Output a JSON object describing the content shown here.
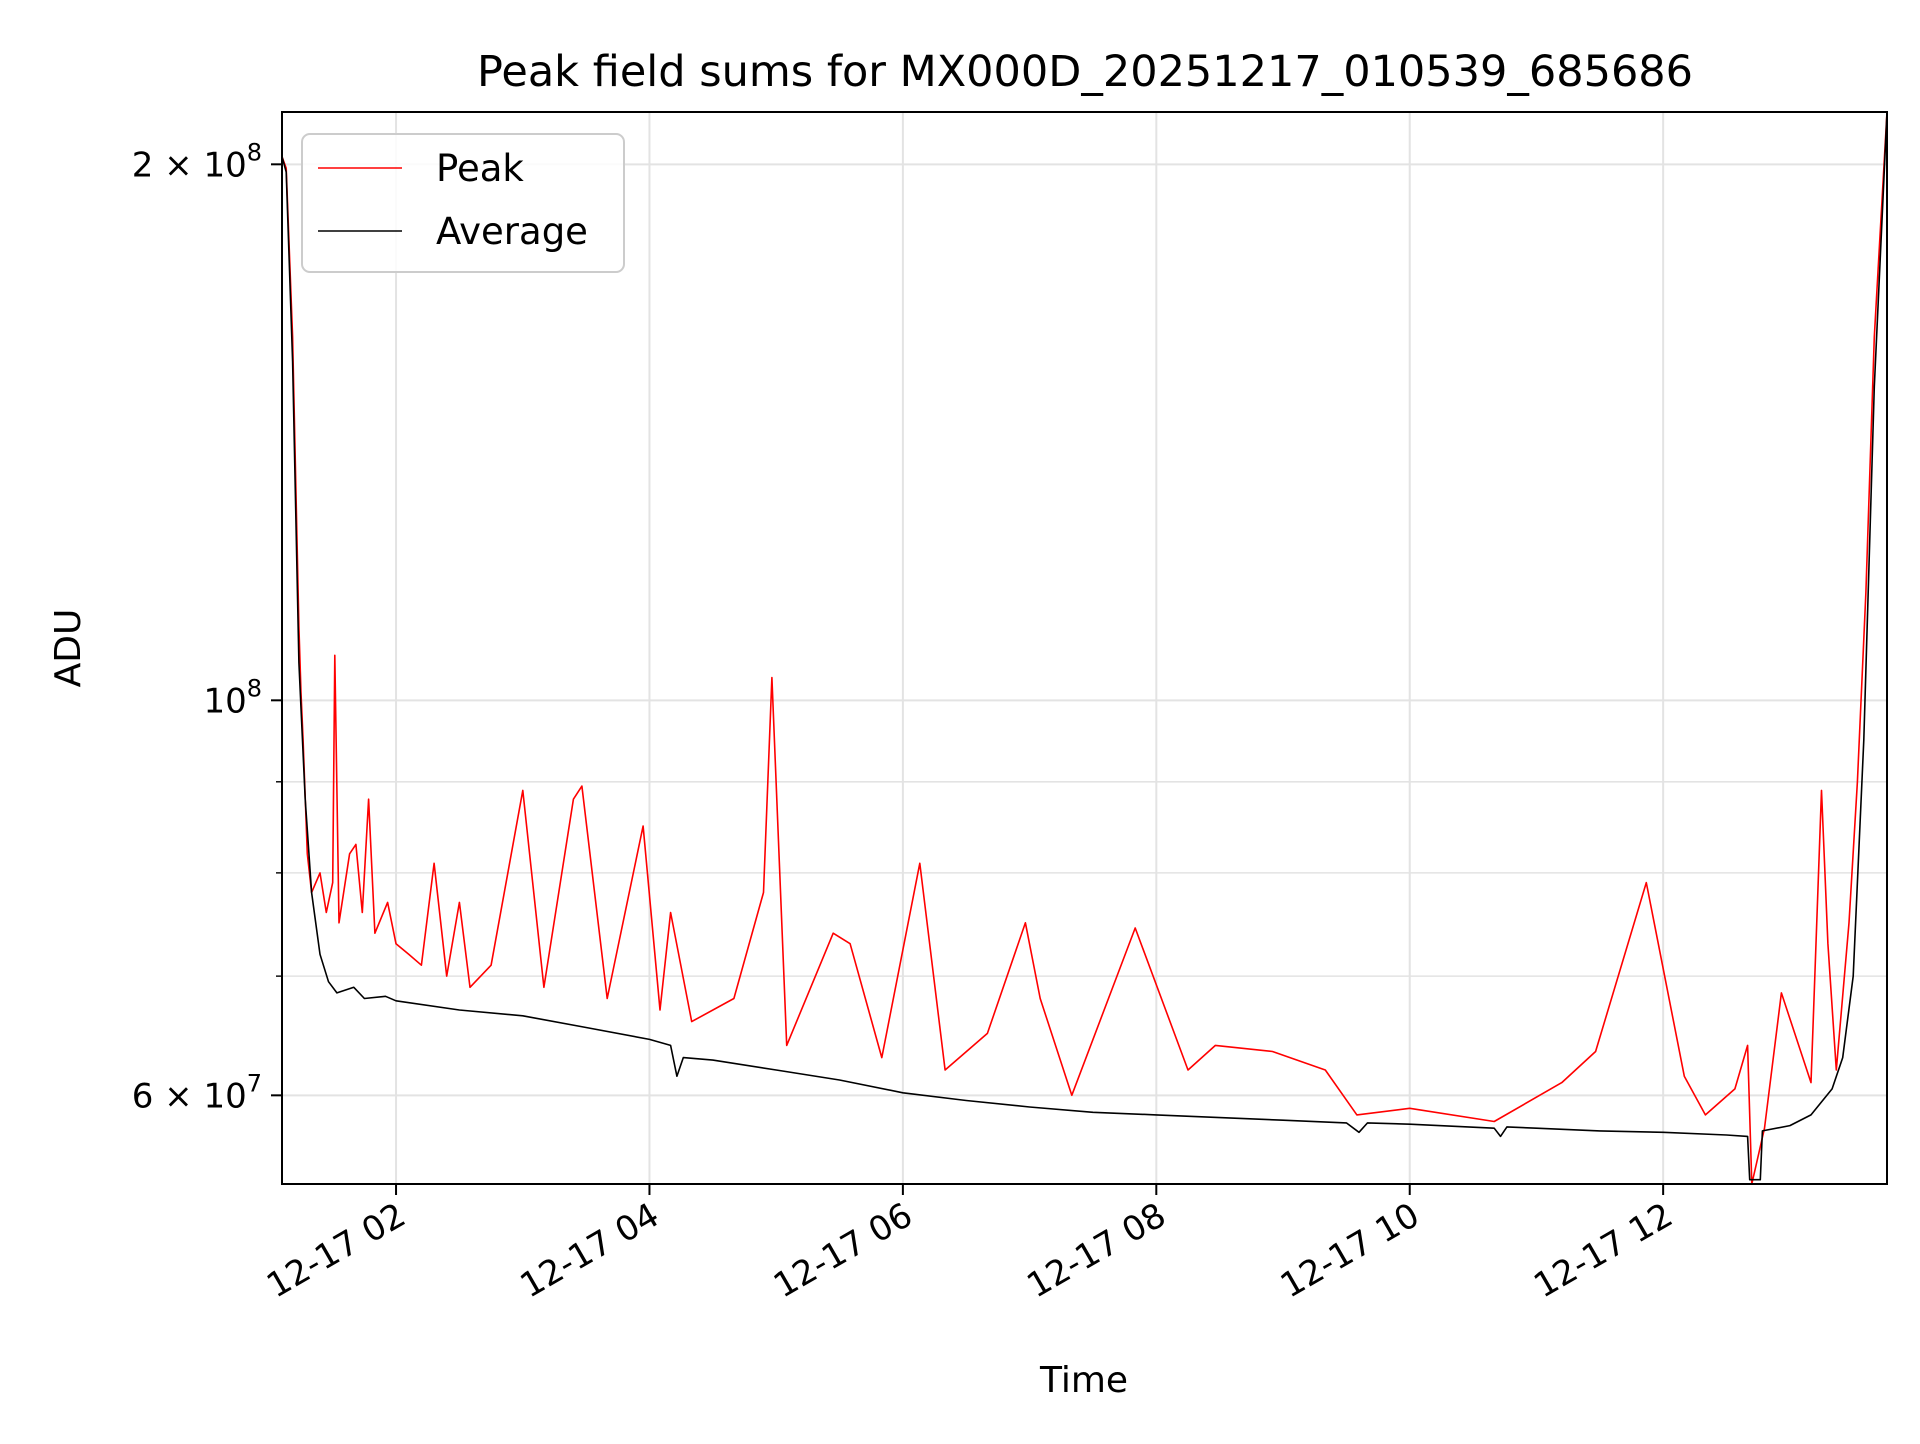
{
  "chart_data": {
    "type": "line",
    "title": "Peak field sums for MX000D_20251217_010539_685686",
    "xlabel": "Time",
    "ylabel": "ADU",
    "yscale": "log",
    "xlim": [
      "12-17 01:06",
      "12-17 13:46"
    ],
    "ylim": [
      53500000,
      214000000
    ],
    "grid": true,
    "legend_position": "top-left",
    "x_ticks": [
      "12-17 02",
      "12-17 04",
      "12-17 06",
      "12-17 08",
      "12-17 10",
      "12-17 12"
    ],
    "y_ticks": [
      {
        "value": 200000000,
        "mantissa": "2",
        "exponent": "8",
        "label": "2 × 10^8"
      },
      {
        "value": 100000000,
        "mantissa": "",
        "exponent": "8",
        "label": "10^8"
      },
      {
        "value": 60000000,
        "mantissa": "6",
        "exponent": "7",
        "label": "6 × 10^7"
      }
    ],
    "series": [
      {
        "name": "Peak",
        "color": "#ff0000",
        "points": [
          [
            "12-17 01:06",
            202000000
          ],
          [
            "12-17 01:08",
            199000000
          ],
          [
            "12-17 01:11",
            160000000
          ],
          [
            "12-17 01:14",
            110000000
          ],
          [
            "12-17 01:15",
            101000000
          ],
          [
            "12-17 01:16",
            95000000
          ],
          [
            "12-17 01:18",
            82000000
          ],
          [
            "12-17 01:20",
            78000000
          ],
          [
            "12-17 01:24",
            80000000
          ],
          [
            "12-17 01:27",
            76000000
          ],
          [
            "12-17 01:30",
            79000000
          ],
          [
            "12-17 01:31",
            106000000
          ],
          [
            "12-17 01:33",
            75000000
          ],
          [
            "12-17 01:38",
            82000000
          ],
          [
            "12-17 01:41",
            83000000
          ],
          [
            "12-17 01:44",
            76000000
          ],
          [
            "12-17 01:47",
            88000000
          ],
          [
            "12-17 01:50",
            74000000
          ],
          [
            "12-17 01:56",
            77000000
          ],
          [
            "12-17 02:00",
            73000000
          ],
          [
            "12-17 02:06",
            72000000
          ],
          [
            "12-17 02:12",
            71000000
          ],
          [
            "12-17 02:18",
            81000000
          ],
          [
            "12-17 02:24",
            70000000
          ],
          [
            "12-17 02:30",
            77000000
          ],
          [
            "12-17 02:35",
            69000000
          ],
          [
            "12-17 02:45",
            71000000
          ],
          [
            "12-17 03:00",
            89000000
          ],
          [
            "12-17 03:10",
            69000000
          ],
          [
            "12-17 03:24",
            88000000
          ],
          [
            "12-17 03:28",
            89500000
          ],
          [
            "12-17 03:40",
            68000000
          ],
          [
            "12-17 03:57",
            85000000
          ],
          [
            "12-17 04:05",
            67000000
          ],
          [
            "12-17 04:10",
            76000000
          ],
          [
            "12-17 04:20",
            66000000
          ],
          [
            "12-17 04:40",
            68000000
          ],
          [
            "12-17 04:54",
            78000000
          ],
          [
            "12-17 04:58",
            103000000
          ],
          [
            "12-17 05:05",
            64000000
          ],
          [
            "12-17 05:27",
            74000000
          ],
          [
            "12-17 05:35",
            73000000
          ],
          [
            "12-17 05:50",
            63000000
          ],
          [
            "12-17 06:08",
            81000000
          ],
          [
            "12-17 06:20",
            62000000
          ],
          [
            "12-17 06:40",
            65000000
          ],
          [
            "12-17 06:58",
            75000000
          ],
          [
            "12-17 07:05",
            68000000
          ],
          [
            "12-17 07:20",
            60000000
          ],
          [
            "12-17 07:50",
            74500000
          ],
          [
            "12-17 08:15",
            62000000
          ],
          [
            "12-17 08:28",
            64000000
          ],
          [
            "12-17 08:55",
            63500000
          ],
          [
            "12-17 09:20",
            62000000
          ],
          [
            "12-17 09:35",
            58500000
          ],
          [
            "12-17 10:00",
            59000000
          ],
          [
            "12-17 10:40",
            58000000
          ],
          [
            "12-17 11:12",
            61000000
          ],
          [
            "12-17 11:28",
            63500000
          ],
          [
            "12-17 11:52",
            79000000
          ],
          [
            "12-17 12:10",
            61500000
          ],
          [
            "12-17 12:20",
            58500000
          ],
          [
            "12-17 12:34",
            60500000
          ],
          [
            "12-17 12:40",
            64000000
          ],
          [
            "12-17 12:42",
            53500000
          ],
          [
            "12-17 12:48",
            57500000
          ],
          [
            "12-17 12:56",
            68500000
          ],
          [
            "12-17 13:10",
            61000000
          ],
          [
            "12-17 13:15",
            89000000
          ],
          [
            "12-17 13:18",
            73000000
          ],
          [
            "12-17 13:22",
            62000000
          ],
          [
            "12-17 13:28",
            75000000
          ],
          [
            "12-17 13:32",
            90000000
          ],
          [
            "12-17 13:36",
            115000000
          ],
          [
            "12-17 13:40",
            160000000
          ],
          [
            "12-17 13:46",
            214000000
          ]
        ]
      },
      {
        "name": "Average",
        "color": "#000000",
        "points": [
          [
            "12-17 01:06",
            202000000
          ],
          [
            "12-17 01:08",
            198000000
          ],
          [
            "12-17 01:11",
            155000000
          ],
          [
            "12-17 01:14",
            105000000
          ],
          [
            "12-17 01:17",
            88000000
          ],
          [
            "12-17 01:20",
            78000000
          ],
          [
            "12-17 01:24",
            72000000
          ],
          [
            "12-17 01:28",
            69500000
          ],
          [
            "12-17 01:32",
            68500000
          ],
          [
            "12-17 01:40",
            69000000
          ],
          [
            "12-17 01:45",
            68000000
          ],
          [
            "12-17 01:55",
            68200000
          ],
          [
            "12-17 02:00",
            67800000
          ],
          [
            "12-17 02:30",
            67000000
          ],
          [
            "12-17 03:00",
            66500000
          ],
          [
            "12-17 03:30",
            65500000
          ],
          [
            "12-17 04:00",
            64500000
          ],
          [
            "12-17 04:10",
            64000000
          ],
          [
            "12-17 04:13",
            61500000
          ],
          [
            "12-17 04:16",
            63000000
          ],
          [
            "12-17 04:30",
            62800000
          ],
          [
            "12-17 05:00",
            62000000
          ],
          [
            "12-17 05:30",
            61200000
          ],
          [
            "12-17 06:00",
            60200000
          ],
          [
            "12-17 06:30",
            59600000
          ],
          [
            "12-17 07:00",
            59100000
          ],
          [
            "12-17 07:30",
            58700000
          ],
          [
            "12-17 08:00",
            58500000
          ],
          [
            "12-17 08:30",
            58300000
          ],
          [
            "12-17 09:00",
            58100000
          ],
          [
            "12-17 09:30",
            57900000
          ],
          [
            "12-17 09:36",
            57200000
          ],
          [
            "12-17 09:40",
            57900000
          ],
          [
            "12-17 10:00",
            57800000
          ],
          [
            "12-17 10:40",
            57500000
          ],
          [
            "12-17 10:43",
            56900000
          ],
          [
            "12-17 10:46",
            57600000
          ],
          [
            "12-17 11:00",
            57500000
          ],
          [
            "12-17 11:30",
            57300000
          ],
          [
            "12-17 12:00",
            57200000
          ],
          [
            "12-17 12:30",
            57000000
          ],
          [
            "12-17 12:40",
            56900000
          ],
          [
            "12-17 12:41",
            53800000
          ],
          [
            "12-17 12:46",
            53800000
          ],
          [
            "12-17 12:47",
            57300000
          ],
          [
            "12-17 13:00",
            57700000
          ],
          [
            "12-17 13:10",
            58500000
          ],
          [
            "12-17 13:20",
            60500000
          ],
          [
            "12-17 13:25",
            63000000
          ],
          [
            "12-17 13:30",
            70000000
          ],
          [
            "12-17 13:35",
            95000000
          ],
          [
            "12-17 13:40",
            150000000
          ],
          [
            "12-17 13:46",
            214000000
          ]
        ]
      }
    ]
  }
}
